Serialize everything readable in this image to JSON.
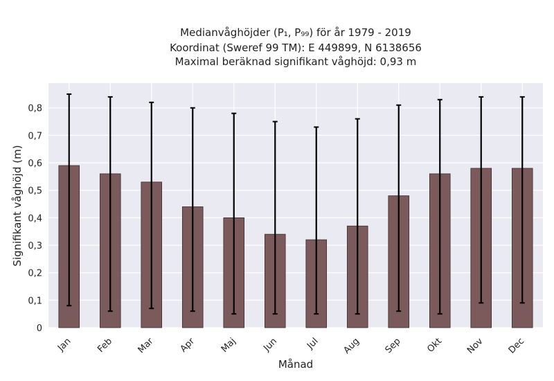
{
  "chart_data": {
    "type": "bar",
    "title_lines": [
      "Medianvåghöjder (P₁, P₉₉) för år 1979 - 2019",
      "Koordinat (Sweref 99 TM): E 449899, N 6138656",
      "Maximal beräknad signifikant våghöjd: 0,93 m"
    ],
    "xlabel": "Månad",
    "ylabel": "Signifikant våghöjd (m)",
    "categories": [
      "Jan",
      "Feb",
      "Mar",
      "Apr",
      "Maj",
      "Jun",
      "Jul",
      "Aug",
      "Sep",
      "Okt",
      "Nov",
      "Dec"
    ],
    "values": [
      0.59,
      0.56,
      0.53,
      0.44,
      0.4,
      0.34,
      0.32,
      0.37,
      0.48,
      0.56,
      0.58,
      0.58
    ],
    "error_low": [
      0.08,
      0.06,
      0.07,
      0.06,
      0.05,
      0.05,
      0.05,
      0.05,
      0.06,
      0.05,
      0.09,
      0.09
    ],
    "error_high": [
      0.85,
      0.84,
      0.82,
      0.8,
      0.78,
      0.75,
      0.73,
      0.76,
      0.81,
      0.83,
      0.84,
      0.84
    ],
    "ylim": [
      0,
      0.89
    ],
    "yticks": [
      0,
      0.1,
      0.2,
      0.3,
      0.4,
      0.5,
      0.6,
      0.7,
      0.8
    ],
    "ytick_labels": [
      "0",
      "0,1",
      "0,2",
      "0,3",
      "0,4",
      "0,5",
      "0,6",
      "0,7",
      "0,8"
    ],
    "grid": true,
    "colors": {
      "bar": "#7b5a5c",
      "bar_edge": "#3d2b2c",
      "plot_bg": "#eaeaf2",
      "grid": "#ffffff",
      "error": "#000000"
    }
  }
}
